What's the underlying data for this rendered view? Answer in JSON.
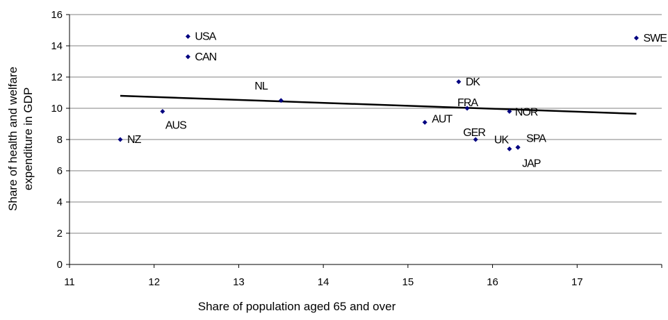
{
  "chart_data": {
    "type": "scatter",
    "xlabel": "Share of population aged 65 and over",
    "ylabel_lines": [
      "Share of health and welfare",
      "expenditure in GDP"
    ],
    "xlim": [
      11,
      18
    ],
    "ylim": [
      0,
      16
    ],
    "x_ticks": [
      11,
      12,
      13,
      14,
      15,
      16,
      17
    ],
    "y_ticks": [
      0,
      2,
      4,
      6,
      8,
      10,
      12,
      14,
      16
    ],
    "grid": "horizontal",
    "marker_color": "#000080",
    "trendline": {
      "x": [
        11.6,
        17.7
      ],
      "y": [
        10.8,
        9.65
      ],
      "color": "#000000"
    },
    "points": [
      {
        "label": "USA",
        "x": 12.4,
        "y": 14.6
      },
      {
        "label": "CAN",
        "x": 12.4,
        "y": 13.3
      },
      {
        "label": "AUS",
        "x": 12.1,
        "y": 9.8
      },
      {
        "label": "NZ",
        "x": 11.6,
        "y": 8.0
      },
      {
        "label": "NL",
        "x": 13.5,
        "y": 10.5
      },
      {
        "label": "DK",
        "x": 15.6,
        "y": 11.7
      },
      {
        "label": "FRA",
        "x": 15.7,
        "y": 10.0
      },
      {
        "label": "AUT",
        "x": 15.2,
        "y": 9.1
      },
      {
        "label": "GER",
        "x": 15.8,
        "y": 8.0
      },
      {
        "label": "NOR",
        "x": 16.2,
        "y": 9.8
      },
      {
        "label": "UK",
        "x": 16.2,
        "y": 7.4
      },
      {
        "label": "SPA",
        "x": 16.3,
        "y": 7.5
      },
      {
        "label": "JAP",
        "x": 16.3,
        "y": 7.5
      },
      {
        "label": "SWE",
        "x": 17.7,
        "y": 14.5
      }
    ]
  }
}
